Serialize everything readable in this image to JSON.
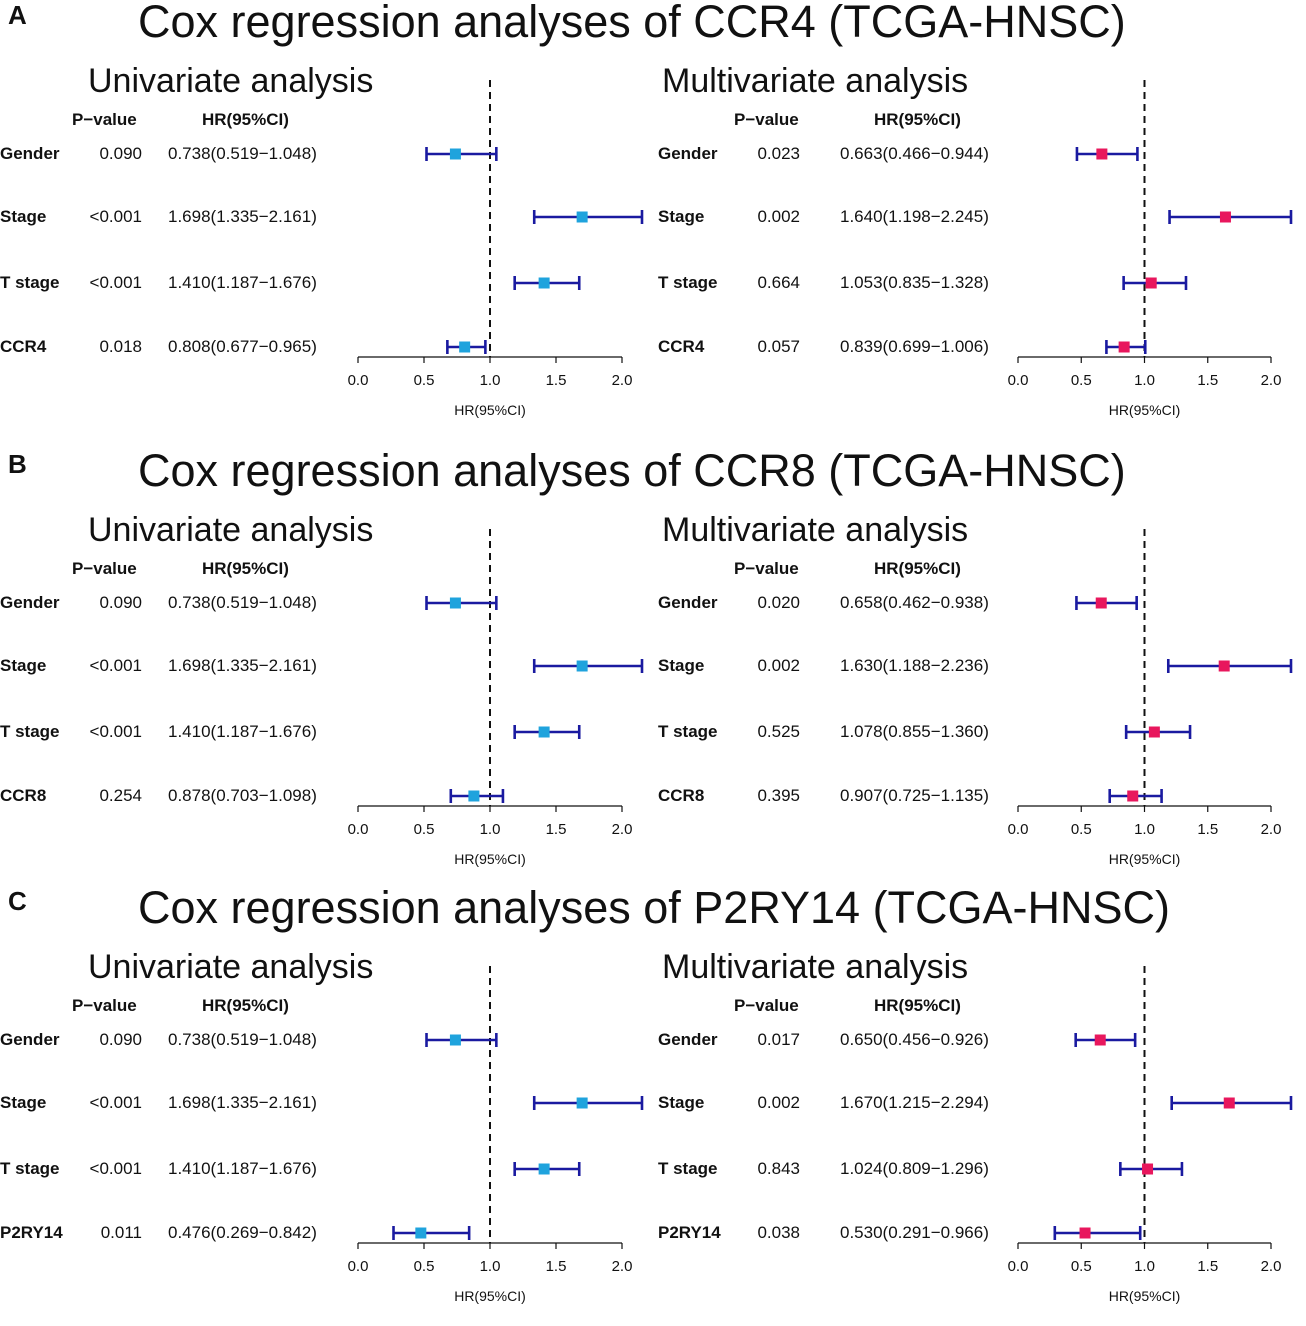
{
  "figure": {
    "axis_ticks": [
      "0.0",
      "0.5",
      "1.0",
      "1.5",
      "2.0"
    ],
    "axis_label": "HR(95%CI)",
    "p_header": "P−value",
    "hr_header": "HR(95%CI)",
    "colors": {
      "univariate": "#1fa3dd",
      "multivariate": "#e8175d",
      "ci_line": "#1a1aa0"
    }
  },
  "chart_data": [
    {
      "panel": "A",
      "type": "forest",
      "title": "Cox regression analyses of CCR4 (TCGA-HNSC)",
      "univariate": {
        "title": "Univariate analysis",
        "xlim": [
          0,
          2
        ],
        "rows": [
          {
            "label": "Gender",
            "p": "0.090",
            "hr_text": "0.738(0.519−1.048)",
            "hr": 0.738,
            "lo": 0.519,
            "hi": 1.048
          },
          {
            "label": "Stage",
            "p": "<0.001",
            "hr_text": "1.698(1.335−2.161)",
            "hr": 1.698,
            "lo": 1.335,
            "hi": 2.161
          },
          {
            "label": "T stage",
            "p": "<0.001",
            "hr_text": "1.410(1.187−1.676)",
            "hr": 1.41,
            "lo": 1.187,
            "hi": 1.676
          },
          {
            "label": "CCR4",
            "p": "0.018",
            "hr_text": "0.808(0.677−0.965)",
            "hr": 0.808,
            "lo": 0.677,
            "hi": 0.965
          }
        ]
      },
      "multivariate": {
        "title": "Multivariate analysis",
        "xlim": [
          0,
          2
        ],
        "rows": [
          {
            "label": "Gender",
            "p": "0.023",
            "hr_text": "0.663(0.466−0.944)",
            "hr": 0.663,
            "lo": 0.466,
            "hi": 0.944
          },
          {
            "label": "Stage",
            "p": "0.002",
            "hr_text": "1.640(1.198−2.245)",
            "hr": 1.64,
            "lo": 1.198,
            "hi": 2.245
          },
          {
            "label": "T stage",
            "p": "0.664",
            "hr_text": "1.053(0.835−1.328)",
            "hr": 1.053,
            "lo": 0.835,
            "hi": 1.328
          },
          {
            "label": "CCR4",
            "p": "0.057",
            "hr_text": "0.839(0.699−1.006)",
            "hr": 0.839,
            "lo": 0.699,
            "hi": 1.006
          }
        ]
      }
    },
    {
      "panel": "B",
      "type": "forest",
      "title": "Cox regression analyses of CCR8 (TCGA-HNSC)",
      "univariate": {
        "title": "Univariate analysis",
        "xlim": [
          0,
          2
        ],
        "rows": [
          {
            "label": "Gender",
            "p": "0.090",
            "hr_text": "0.738(0.519−1.048)",
            "hr": 0.738,
            "lo": 0.519,
            "hi": 1.048
          },
          {
            "label": "Stage",
            "p": "<0.001",
            "hr_text": "1.698(1.335−2.161)",
            "hr": 1.698,
            "lo": 1.335,
            "hi": 2.161
          },
          {
            "label": "T stage",
            "p": "<0.001",
            "hr_text": "1.410(1.187−1.676)",
            "hr": 1.41,
            "lo": 1.187,
            "hi": 1.676
          },
          {
            "label": "CCR8",
            "p": "0.254",
            "hr_text": "0.878(0.703−1.098)",
            "hr": 0.878,
            "lo": 0.703,
            "hi": 1.098
          }
        ]
      },
      "multivariate": {
        "title": "Multivariate analysis",
        "xlim": [
          0,
          2
        ],
        "rows": [
          {
            "label": "Gender",
            "p": "0.020",
            "hr_text": "0.658(0.462−0.938)",
            "hr": 0.658,
            "lo": 0.462,
            "hi": 0.938
          },
          {
            "label": "Stage",
            "p": "0.002",
            "hr_text": "1.630(1.188−2.236)",
            "hr": 1.63,
            "lo": 1.188,
            "hi": 2.236
          },
          {
            "label": "T stage",
            "p": "0.525",
            "hr_text": "1.078(0.855−1.360)",
            "hr": 1.078,
            "lo": 0.855,
            "hi": 1.36
          },
          {
            "label": "CCR8",
            "p": "0.395",
            "hr_text": "0.907(0.725−1.135)",
            "hr": 0.907,
            "lo": 0.725,
            "hi": 1.135
          }
        ]
      }
    },
    {
      "panel": "C",
      "type": "forest",
      "title": "Cox regression analyses of P2RY14 (TCGA-HNSC)",
      "univariate": {
        "title": "Univariate analysis",
        "xlim": [
          0,
          2
        ],
        "rows": [
          {
            "label": "Gender",
            "p": "0.090",
            "hr_text": "0.738(0.519−1.048)",
            "hr": 0.738,
            "lo": 0.519,
            "hi": 1.048
          },
          {
            "label": "Stage",
            "p": "<0.001",
            "hr_text": "1.698(1.335−2.161)",
            "hr": 1.698,
            "lo": 1.335,
            "hi": 2.161
          },
          {
            "label": "T stage",
            "p": "<0.001",
            "hr_text": "1.410(1.187−1.676)",
            "hr": 1.41,
            "lo": 1.187,
            "hi": 1.676
          },
          {
            "label": "P2RY14",
            "p": "0.011",
            "hr_text": "0.476(0.269−0.842)",
            "hr": 0.476,
            "lo": 0.269,
            "hi": 0.842
          }
        ]
      },
      "multivariate": {
        "title": "Multivariate analysis",
        "xlim": [
          0,
          2
        ],
        "rows": [
          {
            "label": "Gender",
            "p": "0.017",
            "hr_text": "0.650(0.456−0.926)",
            "hr": 0.65,
            "lo": 0.456,
            "hi": 0.926
          },
          {
            "label": "Stage",
            "p": "0.002",
            "hr_text": "1.670(1.215−2.294)",
            "hr": 1.67,
            "lo": 1.215,
            "hi": 2.294
          },
          {
            "label": "T stage",
            "p": "0.843",
            "hr_text": "1.024(0.809−1.296)",
            "hr": 1.024,
            "lo": 0.809,
            "hi": 1.296
          },
          {
            "label": "P2RY14",
            "p": "0.038",
            "hr_text": "0.530(0.291−0.966)",
            "hr": 0.53,
            "lo": 0.291,
            "hi": 0.966
          }
        ]
      }
    }
  ]
}
